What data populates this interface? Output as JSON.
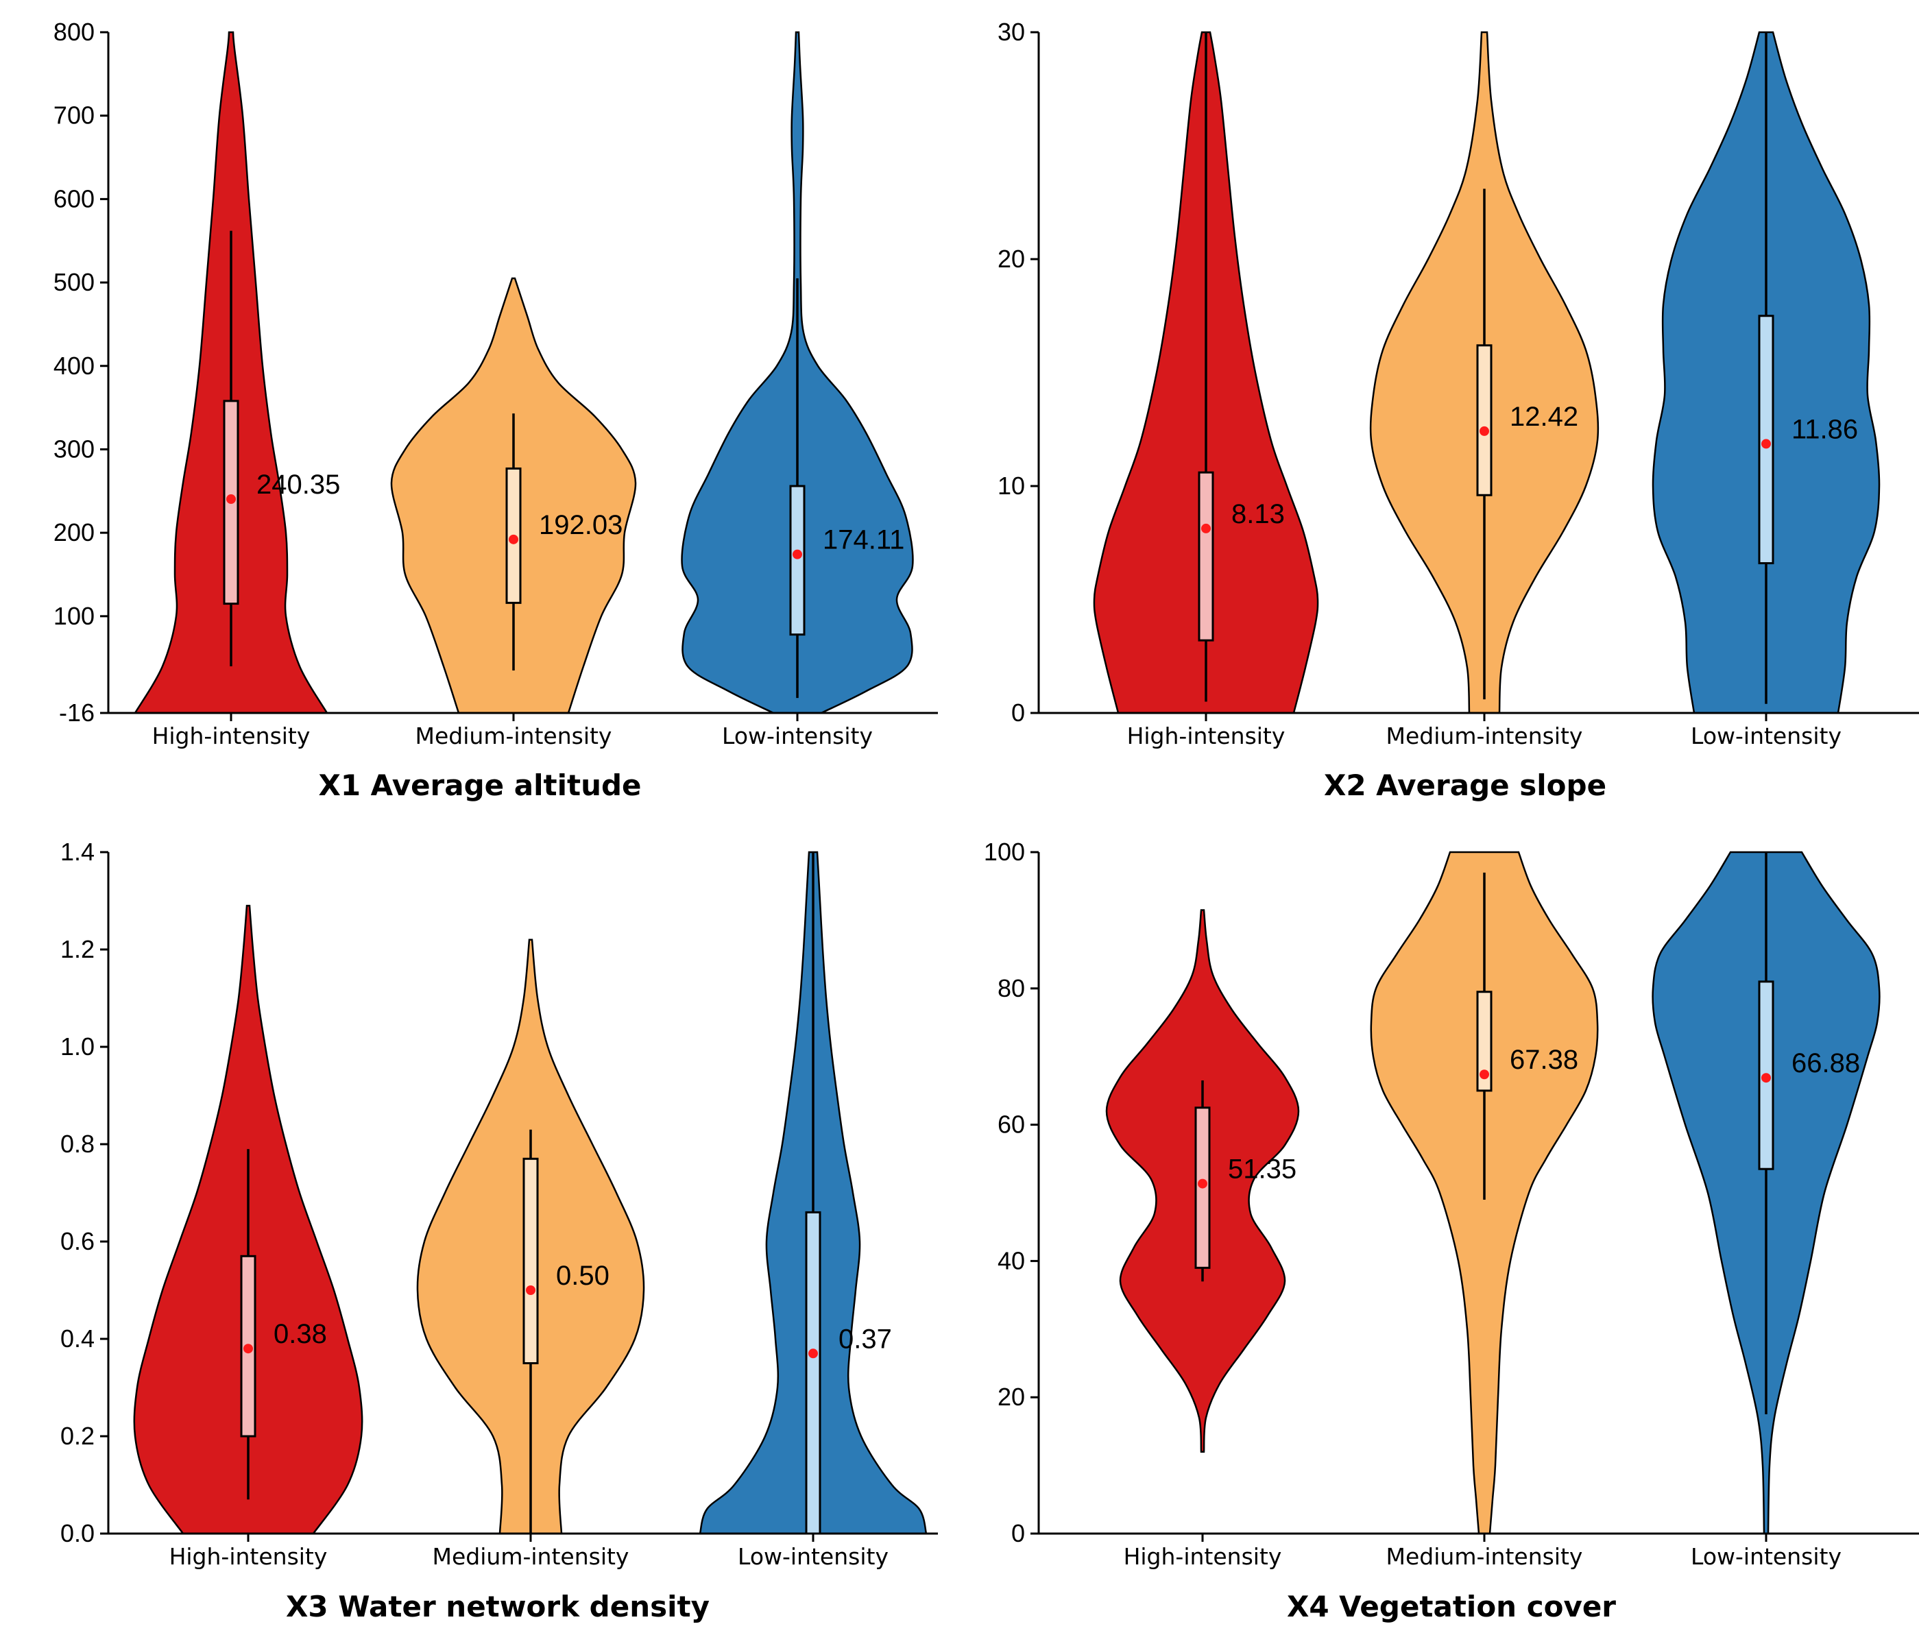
{
  "colors": {
    "high": "#d7191c",
    "medium": "#f9b160",
    "low": "#2c7bb6",
    "high_box": "#f5b9b9",
    "medium_box": "#fde3c4",
    "low_box": "#bcdcf3",
    "mean": "#ff1a1a"
  },
  "chart_data": [
    {
      "type": "violin",
      "title": "X1 Average altitude",
      "categories": [
        "High-intensity",
        "Medium-intensity",
        "Low-intensity"
      ],
      "ylim": [
        -16,
        800
      ],
      "yticks": [
        -16,
        100,
        200,
        300,
        400,
        500,
        600,
        700,
        800
      ],
      "ytick_labels": [
        "-16",
        "100",
        "200",
        "300",
        "400",
        "500",
        "600",
        "700",
        "800"
      ],
      "series": [
        {
          "name": "High-intensity",
          "mean": 240.35,
          "mean_label": "240.35",
          "q1": 115,
          "q3": 358,
          "whisker_low": 40,
          "whisker_high": 562,
          "density": [
            [
              -16,
              140
            ],
            [
              40,
              100
            ],
            [
              100,
              80
            ],
            [
              150,
              82
            ],
            [
              200,
              80
            ],
            [
              260,
              70
            ],
            [
              320,
              58
            ],
            [
              400,
              46
            ],
            [
              500,
              36
            ],
            [
              600,
              26
            ],
            [
              700,
              17
            ],
            [
              780,
              5
            ],
            [
              800,
              3
            ]
          ]
        },
        {
          "name": "Medium-intensity",
          "mean": 192.03,
          "mean_label": "192.03",
          "q1": 116,
          "q3": 277,
          "whisker_low": 35,
          "whisker_high": 343,
          "density": [
            [
              -16,
              80
            ],
            [
              40,
              102
            ],
            [
              100,
              128
            ],
            [
              150,
              158
            ],
            [
              200,
              162
            ],
            [
              260,
              178
            ],
            [
              300,
              158
            ],
            [
              340,
              118
            ],
            [
              380,
              65
            ],
            [
              420,
              36
            ],
            [
              460,
              20
            ],
            [
              505,
              2
            ]
          ]
        },
        {
          "name": "Low-intensity",
          "mean": 174.11,
          "mean_label": "174.11",
          "q1": 78,
          "q3": 256,
          "whisker_low": 2,
          "whisker_high": 505,
          "density": [
            [
              -16,
              35
            ],
            [
              10,
              100
            ],
            [
              40,
              160
            ],
            [
              80,
              165
            ],
            [
              120,
              145
            ],
            [
              160,
              168
            ],
            [
              220,
              158
            ],
            [
              270,
              130
            ],
            [
              320,
              100
            ],
            [
              360,
              70
            ],
            [
              400,
              30
            ],
            [
              440,
              9
            ],
            [
              500,
              5
            ],
            [
              600,
              5
            ],
            [
              660,
              8
            ],
            [
              700,
              8
            ],
            [
              760,
              4
            ],
            [
              800,
              2
            ]
          ]
        }
      ]
    },
    {
      "type": "violin",
      "title": "X2 Average slope",
      "categories": [
        "High-intensity",
        "Medium-intensity",
        "Low-intensity"
      ],
      "ylim": [
        0,
        30
      ],
      "yticks": [
        0,
        10,
        20,
        30
      ],
      "ytick_labels": [
        "0",
        "10",
        "20",
        "30"
      ],
      "series": [
        {
          "name": "High-intensity",
          "mean": 8.13,
          "mean_label": "8.13",
          "q1": 3.2,
          "q3": 10.6,
          "whisker_low": 0.5,
          "whisker_high": 30,
          "density": [
            [
              0,
              128
            ],
            [
              2,
              145
            ],
            [
              4,
              160
            ],
            [
              5,
              163
            ],
            [
              6,
              158
            ],
            [
              8,
              142
            ],
            [
              10,
              118
            ],
            [
              12,
              95
            ],
            [
              15,
              72
            ],
            [
              18,
              55
            ],
            [
              21,
              42
            ],
            [
              24,
              32
            ],
            [
              27,
              22
            ],
            [
              29,
              12
            ],
            [
              30,
              6
            ]
          ]
        },
        {
          "name": "Medium-intensity",
          "mean": 12.42,
          "mean_label": "12.42",
          "q1": 9.6,
          "q3": 16.2,
          "whisker_low": 0.6,
          "whisker_high": 23.1,
          "density": [
            [
              0,
              22
            ],
            [
              2,
              25
            ],
            [
              4,
              42
            ],
            [
              6,
              75
            ],
            [
              8,
              115
            ],
            [
              10,
              148
            ],
            [
              12,
              165
            ],
            [
              14,
              162
            ],
            [
              16,
              148
            ],
            [
              18,
              118
            ],
            [
              20,
              82
            ],
            [
              22,
              50
            ],
            [
              24,
              26
            ],
            [
              27,
              10
            ],
            [
              30,
              4
            ]
          ]
        },
        {
          "name": "Low-intensity",
          "mean": 11.86,
          "mean_label": "11.86",
          "q1": 6.6,
          "q3": 17.5,
          "whisker_low": 0.4,
          "whisker_high": 30,
          "density": [
            [
              0,
              105
            ],
            [
              2,
              115
            ],
            [
              4,
              118
            ],
            [
              6,
              132
            ],
            [
              8,
              158
            ],
            [
              10,
              165
            ],
            [
              12,
              160
            ],
            [
              14,
              148
            ],
            [
              16,
              150
            ],
            [
              18,
              150
            ],
            [
              20,
              138
            ],
            [
              22,
              115
            ],
            [
              24,
              82
            ],
            [
              26,
              52
            ],
            [
              28,
              28
            ],
            [
              30,
              10
            ]
          ]
        }
      ]
    },
    {
      "type": "violin",
      "title": "X3 Water network density",
      "categories": [
        "High-intensity",
        "Medium-intensity",
        "Low-intensity"
      ],
      "ylim": [
        0,
        1.4
      ],
      "yticks": [
        0,
        0.2,
        0.4,
        0.6,
        0.8,
        1.0,
        1.2,
        1.4
      ],
      "ytick_labels": [
        "0.0",
        "0.2",
        "0.4",
        "0.6",
        "0.8",
        "1.0",
        "1.2",
        "1.4"
      ],
      "series": [
        {
          "name": "High-intensity",
          "mean": 0.38,
          "mean_label": "0.38",
          "q1": 0.2,
          "q3": 0.57,
          "whisker_low": 0.07,
          "whisker_high": 0.79,
          "density": [
            [
              0,
              95
            ],
            [
              0.1,
              145
            ],
            [
              0.2,
              165
            ],
            [
              0.3,
              162
            ],
            [
              0.4,
              145
            ],
            [
              0.5,
              125
            ],
            [
              0.6,
              100
            ],
            [
              0.7,
              75
            ],
            [
              0.8,
              55
            ],
            [
              0.9,
              38
            ],
            [
              1.0,
              25
            ],
            [
              1.1,
              14
            ],
            [
              1.2,
              7
            ],
            [
              1.29,
              2
            ]
          ]
        },
        {
          "name": "Medium-intensity",
          "mean": 0.5,
          "mean_label": "0.50",
          "q1": 0.35,
          "q3": 0.77,
          "whisker_low": 0.0,
          "whisker_high": 0.83,
          "density": [
            [
              0,
              45
            ],
            [
              0.1,
              42
            ],
            [
              0.2,
              55
            ],
            [
              0.3,
              110
            ],
            [
              0.4,
              152
            ],
            [
              0.5,
              165
            ],
            [
              0.6,
              155
            ],
            [
              0.7,
              125
            ],
            [
              0.8,
              90
            ],
            [
              0.9,
              55
            ],
            [
              1.0,
              25
            ],
            [
              1.1,
              10
            ],
            [
              1.22,
              2
            ]
          ]
        },
        {
          "name": "Low-intensity",
          "mean": 0.37,
          "mean_label": "0.37",
          "q1": 0.0,
          "q3": 0.66,
          "whisker_low": 0.0,
          "whisker_high": 1.4,
          "density": [
            [
              0,
              165
            ],
            [
              0.05,
              155
            ],
            [
              0.1,
              115
            ],
            [
              0.2,
              70
            ],
            [
              0.3,
              52
            ],
            [
              0.4,
              55
            ],
            [
              0.5,
              62
            ],
            [
              0.6,
              68
            ],
            [
              0.7,
              58
            ],
            [
              0.8,
              45
            ],
            [
              0.9,
              35
            ],
            [
              1.0,
              26
            ],
            [
              1.1,
              19
            ],
            [
              1.2,
              14
            ],
            [
              1.3,
              10
            ],
            [
              1.4,
              6
            ]
          ]
        }
      ]
    },
    {
      "type": "violin",
      "title": "X4 Vegetation cover",
      "categories": [
        "High-intensity",
        "Medium-intensity",
        "Low-intensity"
      ],
      "ylim": [
        0,
        100
      ],
      "yticks": [
        0,
        20,
        40,
        60,
        80,
        100
      ],
      "ytick_labels": [
        "0",
        "20",
        "40",
        "60",
        "80",
        "100"
      ],
      "series": [
        {
          "name": "High-intensity",
          "mean": 51.35,
          "mean_label": "51.35",
          "q1": 39,
          "q3": 62.5,
          "whisker_low": 37,
          "whisker_high": 66.5,
          "density": [
            [
              12,
              2
            ],
            [
              17,
              5
            ],
            [
              22,
              25
            ],
            [
              27,
              60
            ],
            [
              32,
              95
            ],
            [
              37,
              120
            ],
            [
              42,
              100
            ],
            [
              47,
              70
            ],
            [
              52,
              75
            ],
            [
              57,
              120
            ],
            [
              62,
              140
            ],
            [
              67,
              120
            ],
            [
              72,
              80
            ],
            [
              77,
              42
            ],
            [
              82,
              15
            ],
            [
              87,
              6
            ],
            [
              91.5,
              2
            ]
          ]
        },
        {
          "name": "Medium-intensity",
          "mean": 67.38,
          "mean_label": "67.38",
          "q1": 65,
          "q3": 79.5,
          "whisker_low": 49,
          "whisker_high": 97,
          "density": [
            [
              0,
              8
            ],
            [
              5,
              12
            ],
            [
              10,
              16
            ],
            [
              20,
              20
            ],
            [
              30,
              25
            ],
            [
              40,
              38
            ],
            [
              50,
              65
            ],
            [
              55,
              90
            ],
            [
              60,
              120
            ],
            [
              65,
              148
            ],
            [
              70,
              162
            ],
            [
              75,
              165
            ],
            [
              80,
              158
            ],
            [
              85,
              128
            ],
            [
              90,
              95
            ],
            [
              95,
              68
            ],
            [
              100,
              50
            ]
          ]
        },
        {
          "name": "Low-intensity",
          "mean": 66.88,
          "mean_label": "66.88",
          "q1": 53.5,
          "q3": 81,
          "whisker_low": 17.5,
          "whisker_high": 100,
          "density": [
            [
              0,
              3
            ],
            [
              10,
              5
            ],
            [
              17,
              12
            ],
            [
              25,
              30
            ],
            [
              32,
              48
            ],
            [
              40,
              65
            ],
            [
              50,
              85
            ],
            [
              60,
              118
            ],
            [
              70,
              148
            ],
            [
              75,
              162
            ],
            [
              80,
              165
            ],
            [
              85,
              155
            ],
            [
              90,
              118
            ],
            [
              95,
              82
            ],
            [
              100,
              52
            ]
          ]
        }
      ]
    }
  ]
}
